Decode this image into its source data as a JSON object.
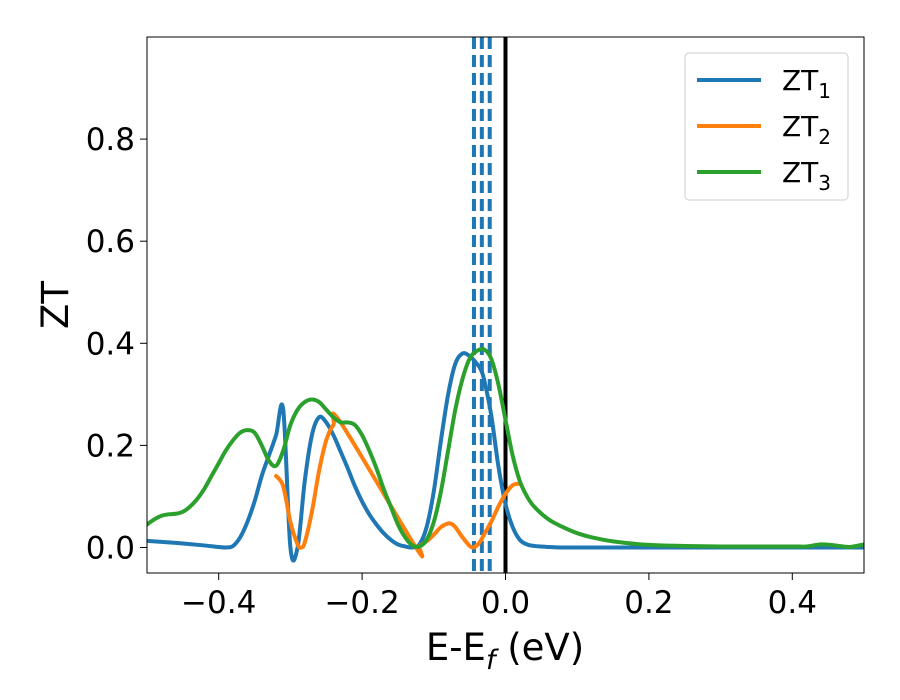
{
  "chart_data": {
    "type": "line",
    "title": "",
    "xlabel": "E-E",
    "xlabel_subscript": "f",
    "xlabel_unit": " (eV)",
    "ylabel": "ZT",
    "xlim": [
      -0.5,
      0.5
    ],
    "ylim": [
      -0.05,
      1.0
    ],
    "grid": false,
    "legend_position": "top-right",
    "x_ticks": [
      -0.4,
      -0.2,
      0.0,
      0.2,
      0.4
    ],
    "x_tick_labels": [
      "−0.4",
      "−0.2",
      "0.0",
      "0.2",
      "0.4"
    ],
    "y_ticks": [
      0.0,
      0.2,
      0.4,
      0.6,
      0.8
    ],
    "y_tick_labels": [
      "0.0",
      "0.2",
      "0.4",
      "0.6",
      "0.8"
    ],
    "vertical_lines": [
      {
        "x": 0.0,
        "style": "solid",
        "color": "#000000"
      },
      {
        "x": -0.044,
        "style": "dashed",
        "color": "#1f77b4"
      },
      {
        "x": -0.033,
        "style": "dashed",
        "color": "#1f77b4"
      },
      {
        "x": -0.022,
        "style": "dashed",
        "color": "#1f77b4"
      }
    ],
    "series": [
      {
        "name": "ZT",
        "subscript": "1",
        "color": "#1f77b4",
        "x": [
          -0.5,
          -0.46,
          -0.42,
          -0.4,
          -0.39,
          -0.38,
          -0.37,
          -0.36,
          -0.35,
          -0.34,
          -0.33,
          -0.32,
          -0.31,
          -0.3,
          -0.29,
          -0.28,
          -0.27,
          -0.26,
          -0.25,
          -0.24,
          -0.23,
          -0.22,
          -0.21,
          -0.2,
          -0.19,
          -0.18,
          -0.17,
          -0.16,
          -0.15,
          -0.14,
          -0.13,
          -0.12,
          -0.11,
          -0.1,
          -0.09,
          -0.08,
          -0.07,
          -0.06,
          -0.05,
          -0.04,
          -0.035,
          -0.03,
          -0.02,
          -0.01,
          0.0,
          0.01,
          0.02,
          0.03,
          0.04,
          0.05,
          0.06,
          0.08,
          0.1,
          0.2,
          0.3,
          0.4,
          0.5
        ],
        "y": [
          0.013,
          0.009,
          0.004,
          0.001,
          0.0,
          0.003,
          0.02,
          0.05,
          0.09,
          0.14,
          0.18,
          0.22,
          0.27,
          0.0,
          0.0,
          0.13,
          0.22,
          0.255,
          0.245,
          0.22,
          0.188,
          0.155,
          0.12,
          0.09,
          0.065,
          0.045,
          0.028,
          0.015,
          0.006,
          0.002,
          0.0,
          0.006,
          0.04,
          0.11,
          0.21,
          0.3,
          0.36,
          0.38,
          0.375,
          0.36,
          0.35,
          0.33,
          0.26,
          0.16,
          0.085,
          0.04,
          0.015,
          0.006,
          0.003,
          0.002,
          0.001,
          0.0,
          0.0,
          0.0,
          0.0,
          0.0,
          0.0
        ]
      },
      {
        "name": "ZT",
        "subscript": "2",
        "color": "#ff7f0e",
        "x": [
          -0.32,
          -0.31,
          -0.3,
          -0.29,
          -0.285,
          -0.28,
          -0.27,
          -0.26,
          -0.25,
          -0.24,
          -0.23,
          -0.125,
          -0.12,
          -0.11,
          -0.1,
          -0.09,
          -0.08,
          -0.075,
          -0.07,
          -0.06,
          -0.05,
          -0.045,
          -0.04,
          -0.035,
          -0.03,
          -0.02,
          -0.01,
          0.0,
          0.01,
          0.02
        ],
        "y": [
          0.14,
          0.12,
          0.05,
          0.006,
          0.0,
          0.01,
          0.07,
          0.15,
          0.21,
          0.24,
          0.245,
          0.0,
          0.003,
          0.012,
          0.025,
          0.04,
          0.047,
          0.046,
          0.04,
          0.02,
          0.003,
          0.0,
          0.004,
          0.012,
          0.025,
          0.05,
          0.08,
          0.105,
          0.122,
          0.125
        ]
      },
      {
        "name": "ZT",
        "subscript": "3",
        "color": "#2ca02c",
        "x": [
          -0.5,
          -0.49,
          -0.48,
          -0.47,
          -0.46,
          -0.45,
          -0.44,
          -0.43,
          -0.42,
          -0.41,
          -0.4,
          -0.39,
          -0.38,
          -0.37,
          -0.36,
          -0.35,
          -0.34,
          -0.33,
          -0.32,
          -0.31,
          -0.3,
          -0.29,
          -0.28,
          -0.27,
          -0.26,
          -0.25,
          -0.24,
          -0.23,
          -0.22,
          -0.21,
          -0.2,
          -0.19,
          -0.18,
          -0.17,
          -0.16,
          -0.15,
          -0.14,
          -0.13,
          -0.12,
          -0.11,
          -0.1,
          -0.09,
          -0.08,
          -0.07,
          -0.06,
          -0.05,
          -0.04,
          -0.03,
          -0.02,
          -0.01,
          0.0,
          0.01,
          0.02,
          0.03,
          0.04,
          0.06,
          0.08,
          0.1,
          0.12,
          0.15,
          0.2,
          0.25,
          0.3,
          0.35,
          0.4,
          0.42,
          0.44,
          0.46,
          0.48,
          0.5
        ],
        "y": [
          0.045,
          0.055,
          0.062,
          0.065,
          0.066,
          0.07,
          0.08,
          0.095,
          0.115,
          0.14,
          0.165,
          0.19,
          0.21,
          0.225,
          0.23,
          0.225,
          0.2,
          0.17,
          0.16,
          0.19,
          0.24,
          0.27,
          0.285,
          0.29,
          0.285,
          0.27,
          0.255,
          0.245,
          0.245,
          0.24,
          0.22,
          0.19,
          0.155,
          0.115,
          0.08,
          0.045,
          0.02,
          0.004,
          0.002,
          0.015,
          0.05,
          0.11,
          0.19,
          0.27,
          0.33,
          0.37,
          0.385,
          0.388,
          0.37,
          0.32,
          0.25,
          0.18,
          0.13,
          0.1,
          0.08,
          0.055,
          0.04,
          0.028,
          0.02,
          0.012,
          0.005,
          0.003,
          0.002,
          0.002,
          0.002,
          0.002,
          0.006,
          0.004,
          0.001,
          0.006
        ]
      }
    ]
  }
}
